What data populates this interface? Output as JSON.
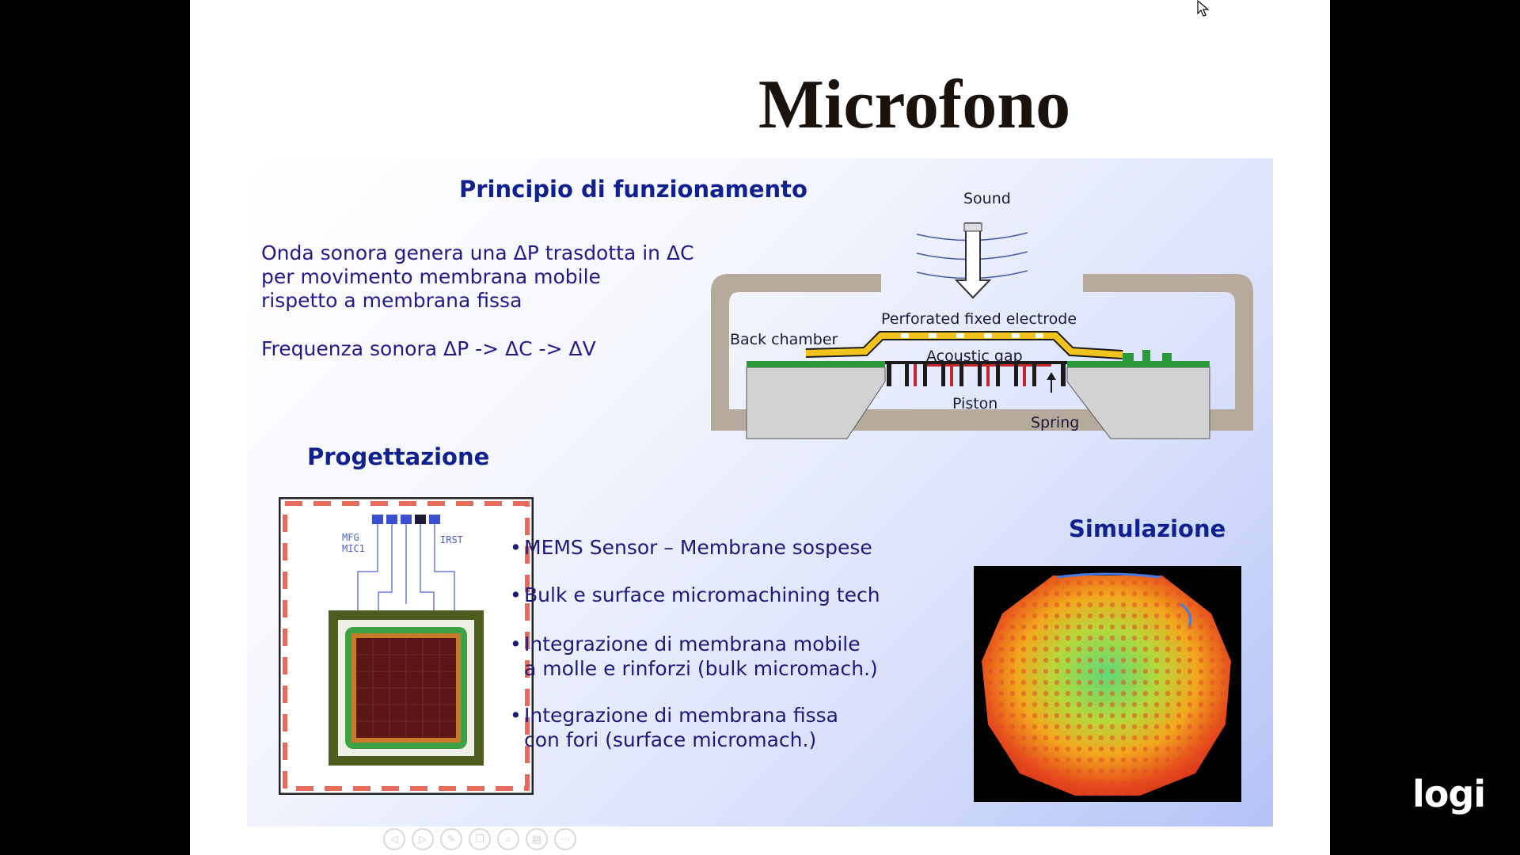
{
  "slide": {
    "title": "Microfono",
    "principle": {
      "heading": "Principio di funzionamento",
      "text1": "Onda sonora genera una ΔP trasdotta in ΔC\nper movimento membrana mobile\nrispetto a membrana fissa",
      "text2": "Frequenza sonora ΔP -> ΔC -> ΔV"
    },
    "diagram": {
      "labels": {
        "sound": "Sound",
        "perforated": "Perforated fixed electrode",
        "back_chamber": "Back chamber",
        "gap": "Acoustic gap",
        "piston": "Piston",
        "spring": "Spring"
      }
    },
    "design": {
      "heading": "Progettazione",
      "chip_labels": {
        "left": "MFG\nMIC1",
        "right": "IRST"
      }
    },
    "bullets": [
      "MEMS Sensor – Membrane sospese",
      "Bulk e surface micromachining tech",
      "Integrazione di membrana mobile\na molle e rinforzi (bulk micromach.)",
      "Integrazione di membrana fissa\ncon fori (surface micromach.)"
    ],
    "bullet_marker": "•",
    "simulation": {
      "heading": "Simulazione"
    }
  },
  "toolbar": {
    "icons": [
      "prev-icon",
      "next-icon",
      "pen-icon",
      "copy-icon",
      "zoom-icon",
      "menu-icon",
      "more-icon"
    ],
    "glyphs": [
      "◁",
      "▷",
      "✎",
      "❐",
      "⌕",
      "▤",
      "⋯"
    ]
  },
  "overlay": {
    "logo": "logi"
  },
  "colors": {
    "heading": "#10208f",
    "body": "#231a8a",
    "frame": "#b6aa9c",
    "electrode": "#f2c21d"
  }
}
